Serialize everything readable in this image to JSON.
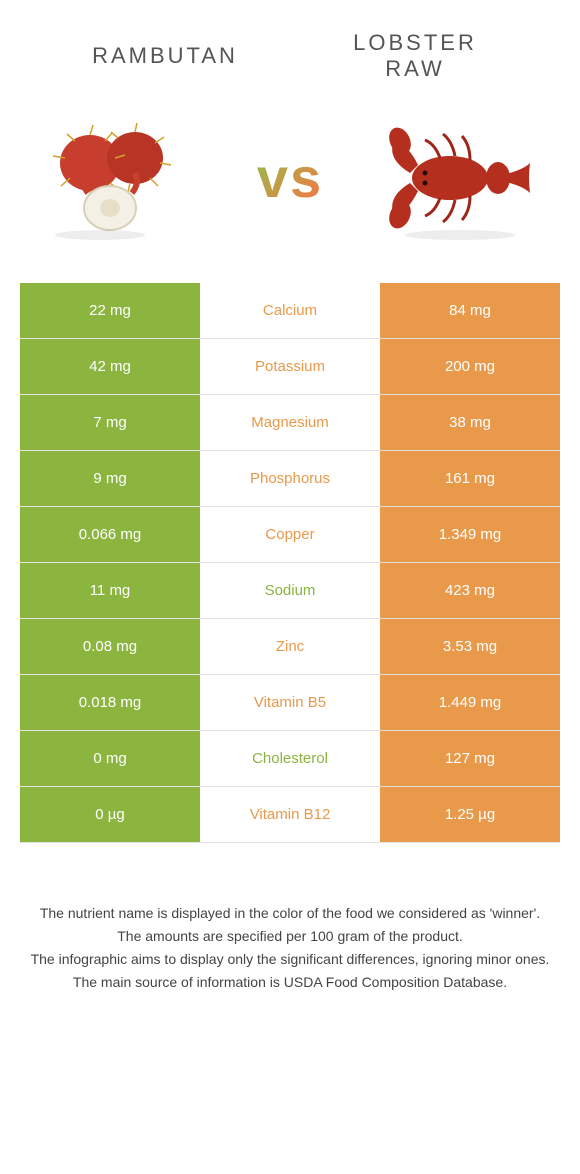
{
  "header": {
    "left_title": "Rambutan",
    "right_title_line1": "Lobster",
    "right_title_line2": "raw",
    "vs": "vs"
  },
  "colors": {
    "left_bg": "#8bb53f",
    "right_bg": "#e8994a",
    "green_text": "#8bb53f",
    "orange_text": "#e8994a",
    "row_border": "#e0e0e0",
    "page_bg": "#ffffff",
    "header_text": "#555555",
    "footer_text": "#444444"
  },
  "rows": [
    {
      "left": "22 mg",
      "label": "Calcium",
      "right": "84 mg",
      "winner": "right"
    },
    {
      "left": "42 mg",
      "label": "Potassium",
      "right": "200 mg",
      "winner": "right"
    },
    {
      "left": "7 mg",
      "label": "Magnesium",
      "right": "38 mg",
      "winner": "right"
    },
    {
      "left": "9 mg",
      "label": "Phosphorus",
      "right": "161 mg",
      "winner": "right"
    },
    {
      "left": "0.066 mg",
      "label": "Copper",
      "right": "1.349 mg",
      "winner": "right"
    },
    {
      "left": "11 mg",
      "label": "Sodium",
      "right": "423 mg",
      "winner": "left"
    },
    {
      "left": "0.08 mg",
      "label": "Zinc",
      "right": "3.53 mg",
      "winner": "right"
    },
    {
      "left": "0.018 mg",
      "label": "Vitamin B5",
      "right": "1.449 mg",
      "winner": "right"
    },
    {
      "left": "0 mg",
      "label": "Cholesterol",
      "right": "127 mg",
      "winner": "left"
    },
    {
      "left": "0 µg",
      "label": "Vitamin B12",
      "right": "1.25 µg",
      "winner": "right"
    }
  ],
  "footer": {
    "line1": "The nutrient name is displayed in the color of the food we considered as 'winner'.",
    "line2": "The amounts are specified per 100 gram of the product.",
    "line3": "The infographic aims to display only the significant differences, ignoring minor ones.",
    "line4": "The main source of information is USDA Food Composition Database."
  }
}
